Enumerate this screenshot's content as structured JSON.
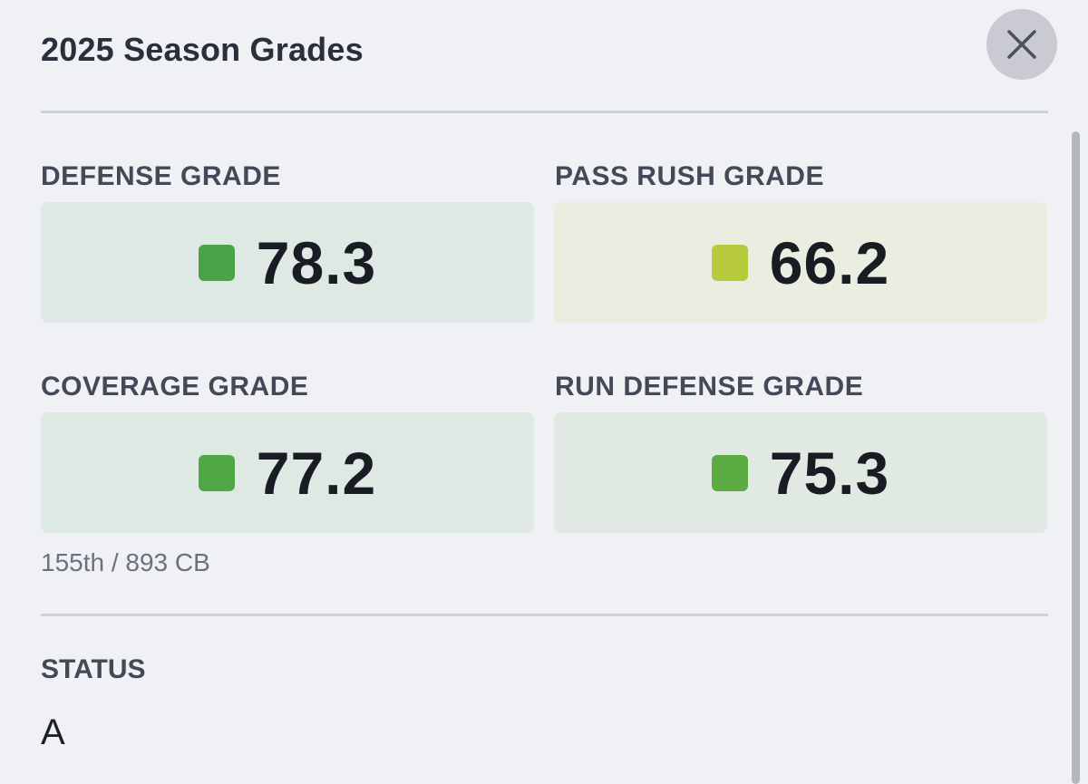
{
  "header": {
    "title": "2025 Season Grades",
    "close_icon": "close-icon"
  },
  "grades": {
    "defense": {
      "label": "DEFENSE GRADE",
      "value": "78.3",
      "color": "#4aa346",
      "bg": "#dfe9e3"
    },
    "pass_rush": {
      "label": "PASS RUSH GRADE",
      "value": "66.2",
      "color": "#b8cb3c",
      "bg": "#eaeee0"
    },
    "coverage": {
      "label": "COVERAGE GRADE",
      "value": "77.2",
      "color": "#4fa745",
      "bg": "#dfe9e3",
      "rank": "155th / 893 CB"
    },
    "run_defense": {
      "label": "RUN DEFENSE GRADE",
      "value": "75.3",
      "color": "#5aac43",
      "bg": "#e0eae2"
    }
  },
  "status": {
    "label": "STATUS",
    "value": "A"
  }
}
